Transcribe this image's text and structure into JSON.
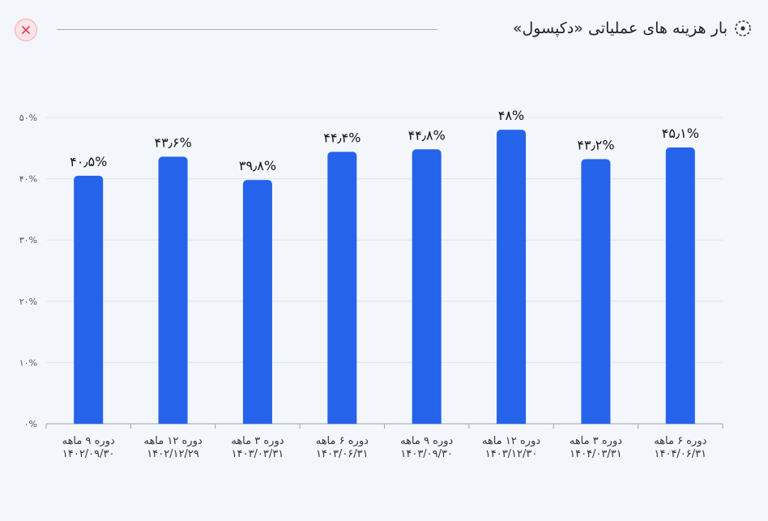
{
  "header": {
    "title": "بار هزینه های عملیاتی «دکپسول»",
    "title_icon": "radio-dot-icon",
    "close_icon": "close-icon"
  },
  "colors": {
    "bar": "#2563eb",
    "grid": "#dfe4ec",
    "axis": "#9aa3ae",
    "close_bg": "#fde3e6",
    "close_x": "#e0485e"
  },
  "chart_data": {
    "type": "bar",
    "title": "بار هزینه های عملیاتی «دکپسول»",
    "categories": [
      [
        "دوره ۹ ماهه",
        "۱۴۰۲/۰۹/۳۰"
      ],
      [
        "دوره ۱۲ ماهه",
        "۱۴۰۲/۱۲/۲۹"
      ],
      [
        "دوره ۳ ماهه",
        "۱۴۰۳/۰۳/۳۱"
      ],
      [
        "دوره ۶ ماهه",
        "۱۴۰۳/۰۶/۳۱"
      ],
      [
        "دوره ۹ ماهه",
        "۱۴۰۳/۰۹/۳۰"
      ],
      [
        "دوره ۱۲ ماهه",
        "۱۴۰۳/۱۲/۳۰"
      ],
      [
        "دوره ۳ ماهه",
        "۱۴۰۴/۰۳/۳۱"
      ],
      [
        "دوره ۶ ماهه",
        "۱۴۰۴/۰۶/۳۱"
      ]
    ],
    "values": [
      40.5,
      43.6,
      39.8,
      44.4,
      44.8,
      48,
      43.2,
      45.1
    ],
    "data_labels": [
      "۴۰٫۵%",
      "۴۳٫۶%",
      "۳۹٫۸%",
      "۴۴٫۴%",
      "۴۴٫۸%",
      "۴۸%",
      "۴۳٫۲%",
      "۴۵٫۱%"
    ],
    "ylim": [
      0,
      50
    ],
    "yticks": [
      0,
      10,
      20,
      30,
      40,
      50
    ],
    "ytick_labels": [
      "۰%",
      "۱۰%",
      "۲۰%",
      "۳۰%",
      "۴۰%",
      "۵۰%"
    ],
    "grid": true,
    "legend": "none"
  }
}
